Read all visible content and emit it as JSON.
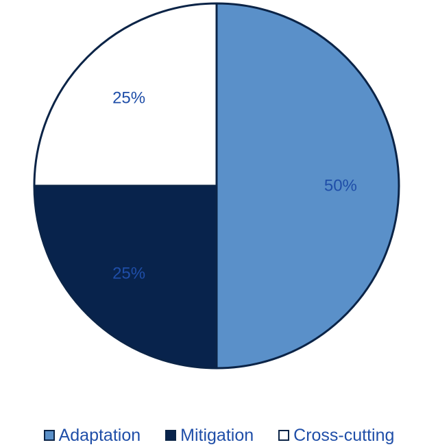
{
  "chart_data": {
    "type": "pie",
    "categories": [
      "Adaptation",
      "Mitigation",
      "Cross-cutting"
    ],
    "values": [
      50,
      25,
      25
    ],
    "data_labels": [
      "50%",
      "25%",
      "25%"
    ],
    "colors": [
      "#5a90c9",
      "#08234c",
      "#ffffff"
    ],
    "outline_color": "#0b2447",
    "label_color": "#1f4ea8",
    "start_angle_deg": 0,
    "direction": "clockwise",
    "legend_position": "bottom",
    "title": "",
    "subtitle": ""
  },
  "legend": {
    "items": [
      {
        "label": "Adaptation",
        "color": "#5a90c9"
      },
      {
        "label": "Mitigation",
        "color": "#08234c"
      },
      {
        "label": "Cross-cutting",
        "color": "#ffffff"
      }
    ]
  }
}
